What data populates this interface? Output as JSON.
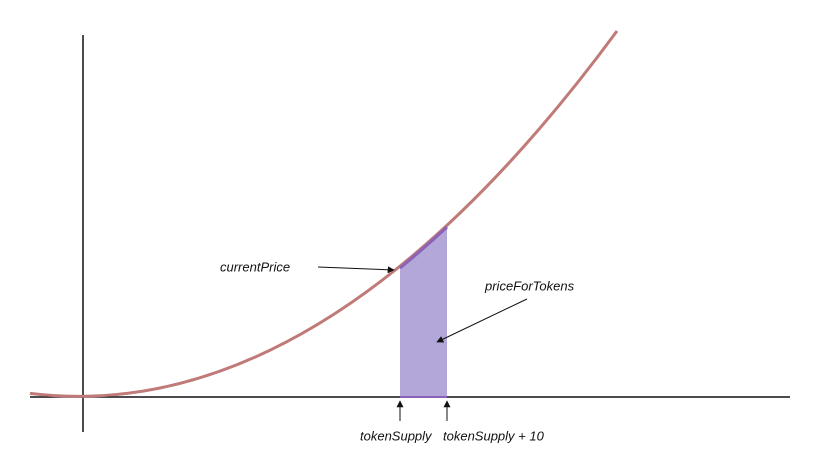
{
  "labels": {
    "current_price": "currentPrice",
    "price_for_tokens": "priceForTokens",
    "token_supply": "tokenSupply",
    "token_supply_plus": "tokenSupply + 10"
  }
}
